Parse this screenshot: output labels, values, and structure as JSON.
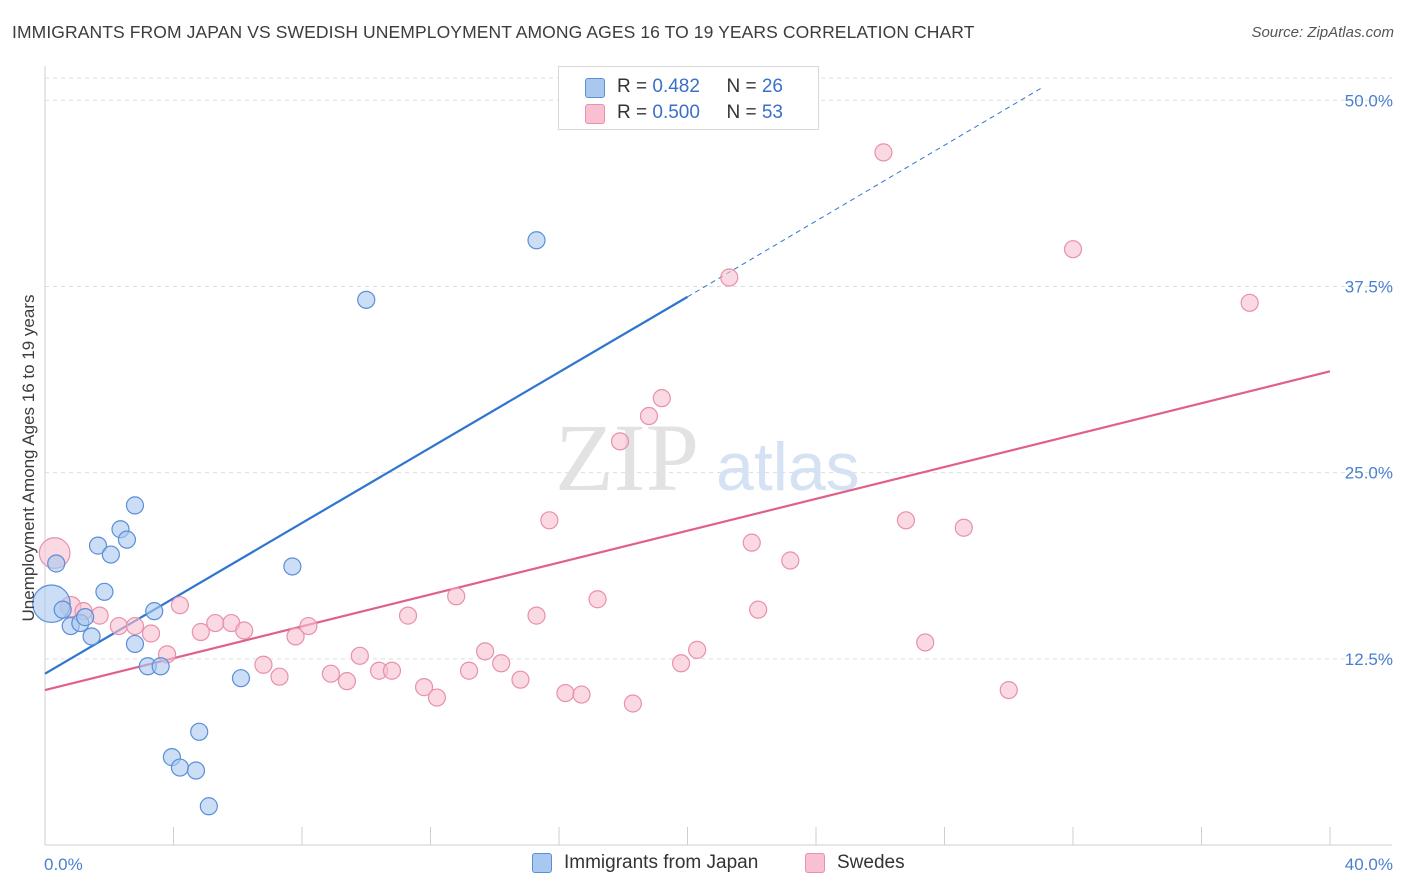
{
  "title": "IMMIGRANTS FROM JAPAN VS SWEDISH UNEMPLOYMENT AMONG AGES 16 TO 19 YEARS CORRELATION CHART",
  "source": "Source: ZipAtlas.com",
  "colors": {
    "japan_fill": "#a8c8f0",
    "japan_stroke": "#5a8fd8",
    "japan_line": "#2f75d0",
    "swedes_fill": "#f8c0d0",
    "swedes_stroke": "#e890ac",
    "swedes_line": "#e0608a",
    "grid": "#dddddd",
    "axis_label": "#4a7fd0"
  },
  "legend_top": {
    "rows": [
      {
        "r_label": "R = ",
        "r_value": "0.482",
        "n_label": "N = ",
        "n_value": "26"
      },
      {
        "r_label": "R = ",
        "r_value": "0.500",
        "n_label": "N = ",
        "n_value": "53"
      }
    ]
  },
  "legend_bottom": {
    "items": [
      "Immigrants from Japan",
      "Swedes"
    ]
  },
  "watermark": {
    "zip": "ZIP",
    "atlas": "atlas"
  },
  "chart_data": {
    "type": "scatter",
    "title": "IMMIGRANTS FROM JAPAN VS SWEDISH UNEMPLOYMENT AMONG AGES 16 TO 19 YEARS CORRELATION CHART",
    "xlabel": "",
    "ylabel": "Unemployment Among Ages 16 to 19 years",
    "xlim": [
      0,
      40
    ],
    "ylim": [
      0,
      52.3
    ],
    "x_tick_labels": [
      "0.0%",
      "40.0%"
    ],
    "y_ticks": [
      12.5,
      25.0,
      37.5,
      50.0
    ],
    "y_tick_labels": [
      "12.5%",
      "25.0%",
      "37.5%",
      "50.0%"
    ],
    "grid": "horizontal dashed",
    "legend_position": "top-center",
    "series": [
      {
        "name": "Immigrants from Japan",
        "r": 0.482,
        "n": 26,
        "trend": {
          "x0": 0,
          "y0": 11.5,
          "x1": 20,
          "y1": 36.8,
          "dashed_to_x": 31,
          "dashed_to_y": 50.8
        },
        "points": [
          [
            0.2,
            16.2,
            2.2
          ],
          [
            0.35,
            18.9,
            1
          ],
          [
            0.55,
            15.8,
            1
          ],
          [
            0.8,
            14.7,
            1
          ],
          [
            1.1,
            14.9,
            1
          ],
          [
            1.25,
            15.3,
            1
          ],
          [
            1.45,
            14.0,
            1
          ],
          [
            1.65,
            20.1,
            1
          ],
          [
            1.85,
            17.0,
            1
          ],
          [
            2.05,
            19.5,
            1
          ],
          [
            2.35,
            21.2,
            1
          ],
          [
            2.55,
            20.5,
            1
          ],
          [
            2.8,
            22.8,
            1
          ],
          [
            2.8,
            13.5,
            1
          ],
          [
            3.2,
            12.0,
            1
          ],
          [
            3.4,
            15.7,
            1
          ],
          [
            3.6,
            12.0,
            1
          ],
          [
            3.95,
            5.9,
            1
          ],
          [
            4.2,
            5.2,
            1
          ],
          [
            4.7,
            5.0,
            1
          ],
          [
            4.8,
            7.6,
            1
          ],
          [
            5.1,
            2.6,
            1
          ],
          [
            6.1,
            11.2,
            1
          ],
          [
            7.7,
            18.7,
            1
          ],
          [
            10.0,
            36.6,
            1
          ],
          [
            15.3,
            40.6,
            1
          ]
        ]
      },
      {
        "name": "Swedes",
        "r": 0.5,
        "n": 53,
        "trend": {
          "x0": 0,
          "y0": 10.4,
          "x1": 40,
          "y1": 31.8
        },
        "points": [
          [
            0.3,
            19.6,
            1.8
          ],
          [
            0.8,
            16.0,
            1.2
          ],
          [
            1.2,
            15.7,
            1
          ],
          [
            1.7,
            15.4,
            1
          ],
          [
            2.3,
            14.7,
            1
          ],
          [
            2.8,
            14.7,
            1
          ],
          [
            3.3,
            14.2,
            1
          ],
          [
            3.8,
            12.8,
            1
          ],
          [
            4.2,
            16.1,
            1
          ],
          [
            4.85,
            14.3,
            1
          ],
          [
            5.3,
            14.9,
            1
          ],
          [
            5.8,
            14.9,
            1
          ],
          [
            6.2,
            14.4,
            1
          ],
          [
            6.8,
            12.1,
            1
          ],
          [
            7.3,
            11.3,
            1
          ],
          [
            7.8,
            14.0,
            1
          ],
          [
            8.2,
            14.7,
            1
          ],
          [
            8.9,
            11.5,
            1
          ],
          [
            9.4,
            11.0,
            1
          ],
          [
            9.8,
            12.7,
            1
          ],
          [
            10.4,
            11.7,
            1
          ],
          [
            10.8,
            11.7,
            1
          ],
          [
            11.3,
            15.4,
            1
          ],
          [
            11.8,
            10.6,
            1
          ],
          [
            12.2,
            9.9,
            1
          ],
          [
            12.8,
            16.7,
            1
          ],
          [
            13.2,
            11.7,
            1
          ],
          [
            13.7,
            13.0,
            1
          ],
          [
            14.2,
            12.2,
            1
          ],
          [
            14.8,
            11.1,
            1
          ],
          [
            15.3,
            15.4,
            1
          ],
          [
            15.7,
            21.8,
            1
          ],
          [
            16.2,
            10.2,
            1
          ],
          [
            16.7,
            10.1,
            1
          ],
          [
            17.2,
            16.5,
            1
          ],
          [
            17.9,
            27.1,
            1
          ],
          [
            18.3,
            9.5,
            1
          ],
          [
            18.8,
            28.8,
            1
          ],
          [
            19.2,
            30.0,
            1
          ],
          [
            19.8,
            12.2,
            1
          ],
          [
            20.3,
            13.1,
            1
          ],
          [
            20.8,
            50.5,
            1
          ],
          [
            21.3,
            38.1,
            1
          ],
          [
            22.0,
            20.3,
            1
          ],
          [
            22.2,
            15.8,
            1
          ],
          [
            23.2,
            19.1,
            1
          ],
          [
            26.1,
            46.5,
            1
          ],
          [
            26.8,
            21.8,
            1
          ],
          [
            27.4,
            13.6,
            1
          ],
          [
            28.6,
            21.3,
            1
          ],
          [
            30.0,
            10.4,
            1
          ],
          [
            32.0,
            40.0,
            1
          ],
          [
            37.5,
            36.4,
            1
          ]
        ]
      }
    ]
  }
}
